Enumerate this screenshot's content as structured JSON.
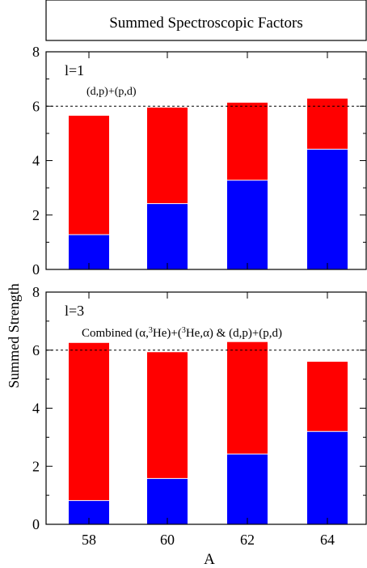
{
  "figure_title": "Summed Spectroscopic Factors",
  "y_axis_label": "Summed Strength",
  "x_axis_label": "A",
  "colors": {
    "blue": "#0000ff",
    "red": "#ff0000",
    "axis": "#000000"
  },
  "chart_data": [
    {
      "type": "bar",
      "stacked": true,
      "panel_label": "l=1",
      "reaction_label": "(d,p)+(p,d)",
      "categories": [
        "58",
        "60",
        "62",
        "64"
      ],
      "series": [
        {
          "values": [
            1.28,
            2.42,
            3.28,
            4.42
          ],
          "color": "#0000ff"
        },
        {
          "values": [
            4.37,
            3.53,
            2.85,
            1.86
          ],
          "color": "#ff0000"
        }
      ],
      "totals": [
        5.65,
        5.95,
        6.13,
        6.28
      ],
      "ylim": [
        0,
        8
      ],
      "y_ticks": [
        0,
        2,
        4,
        6,
        8
      ],
      "reference_line": 6,
      "grid": false
    },
    {
      "type": "bar",
      "stacked": true,
      "panel_label": "l=3",
      "reaction_label": "Combined (α,3He)+(3He,α) & (d,p)+(p,d)",
      "categories": [
        "58",
        "60",
        "62",
        "64"
      ],
      "series": [
        {
          "values": [
            0.82,
            1.58,
            2.42,
            3.2
          ],
          "color": "#0000ff"
        },
        {
          "values": [
            5.43,
            4.35,
            3.86,
            2.4
          ],
          "color": "#ff0000"
        }
      ],
      "totals": [
        6.25,
        5.93,
        6.28,
        5.6
      ],
      "ylim": [
        0,
        8
      ],
      "y_ticks": [
        0,
        2,
        4,
        6,
        8
      ],
      "reference_line": 6,
      "grid": false
    }
  ]
}
